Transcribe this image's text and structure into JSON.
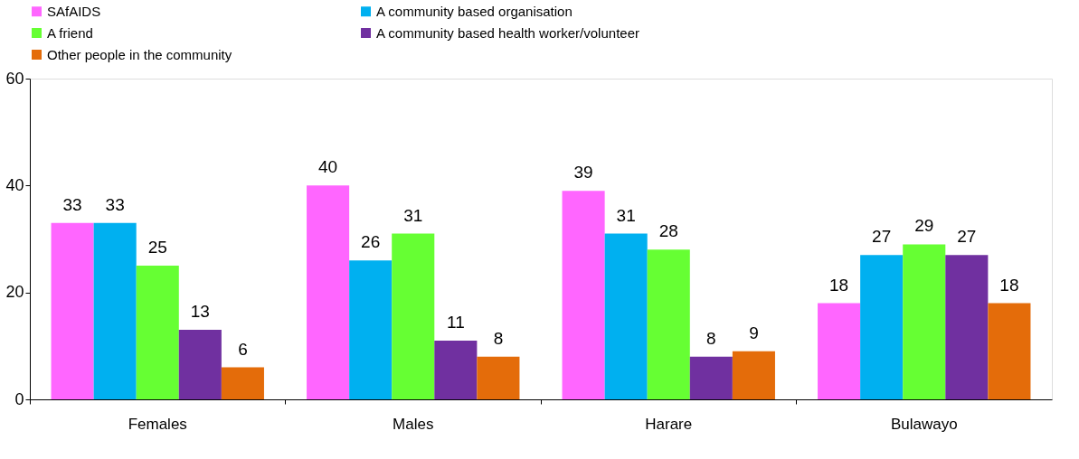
{
  "chart_data": {
    "type": "bar",
    "categories": [
      "Females",
      "Males",
      "Harare",
      "Bulawayo"
    ],
    "series": [
      {
        "name": "SAfAIDS",
        "color": "#ff66ff",
        "values": [
          33,
          40,
          39,
          18
        ]
      },
      {
        "name": "A community based organisation",
        "color": "#00b0f0",
        "values": [
          33,
          26,
          31,
          27
        ]
      },
      {
        "name": "A friend",
        "color": "#66ff33",
        "values": [
          25,
          31,
          28,
          29
        ]
      },
      {
        "name": "A community based health worker/volunteer",
        "color": "#7030a0",
        "values": [
          13,
          11,
          8,
          27
        ]
      },
      {
        "name": "Other people in the community",
        "color": "#e46c0a",
        "values": [
          6,
          8,
          9,
          18
        ]
      }
    ],
    "ylim": [
      0,
      60
    ],
    "yticks": [
      0,
      20,
      40,
      60
    ],
    "grid": false,
    "legend": "top",
    "data_labels": true
  }
}
